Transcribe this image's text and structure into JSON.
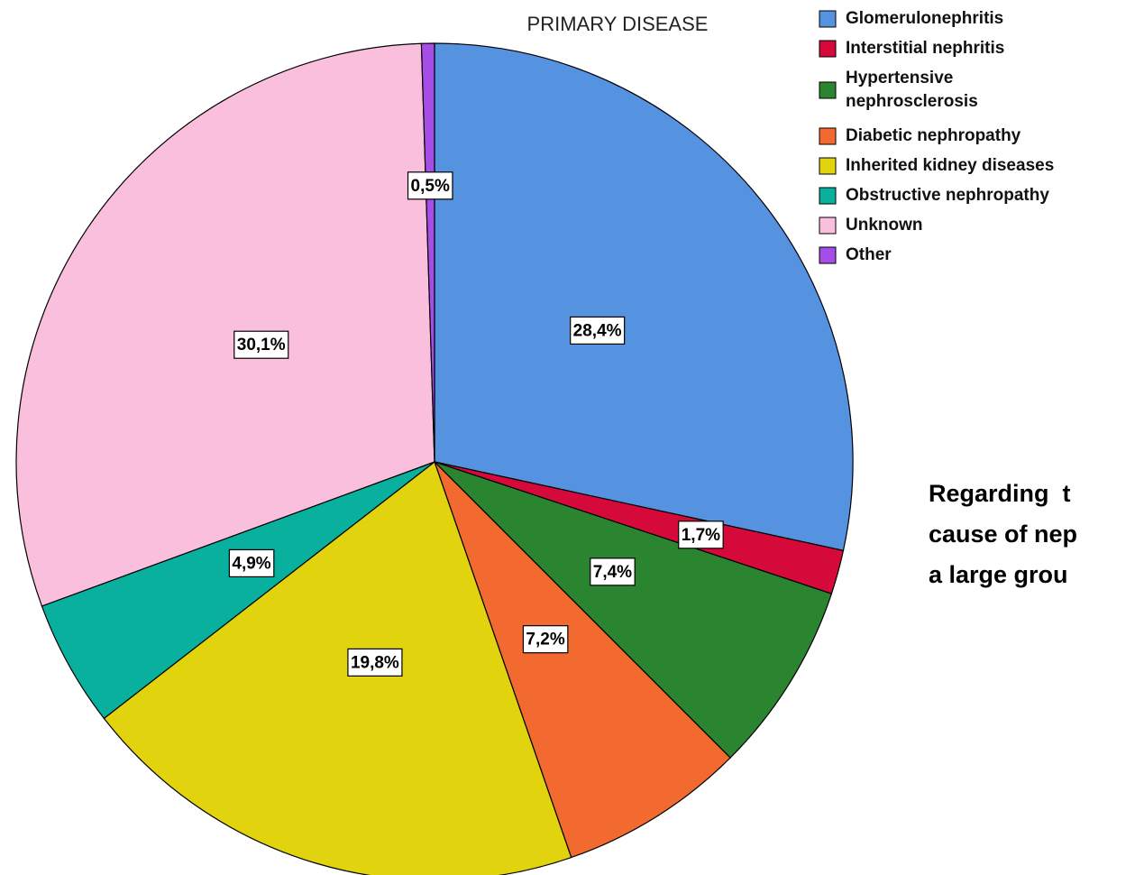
{
  "chart_data": {
    "type": "pie",
    "title": "PRIMARY DISEASE",
    "categories": [
      "Glomerulonephritis",
      "Interstitial nephritis",
      "Hypertensive nephrosclerosis",
      "Diabetic nephropathy",
      "Inherited kidney diseases",
      "Obstructive nephropathy",
      "Unknown",
      "Other"
    ],
    "values": [
      28.4,
      1.7,
      7.4,
      7.2,
      19.8,
      4.9,
      30.1,
      0.5
    ],
    "value_labels": [
      "28,4%",
      "1,7%",
      "7,4%",
      "7,2%",
      "19,8%",
      "4,9%",
      "30,1%",
      "0,5%"
    ],
    "colors": [
      "#5592e0",
      "#d5093a",
      "#2a8430",
      "#f26a2f",
      "#e1d40f",
      "#08b09d",
      "#fbbfde",
      "#a64de8"
    ],
    "legend": "top-right"
  },
  "annotation": [
    "Regarding  t",
    "cause of nep",
    "a large grou"
  ]
}
